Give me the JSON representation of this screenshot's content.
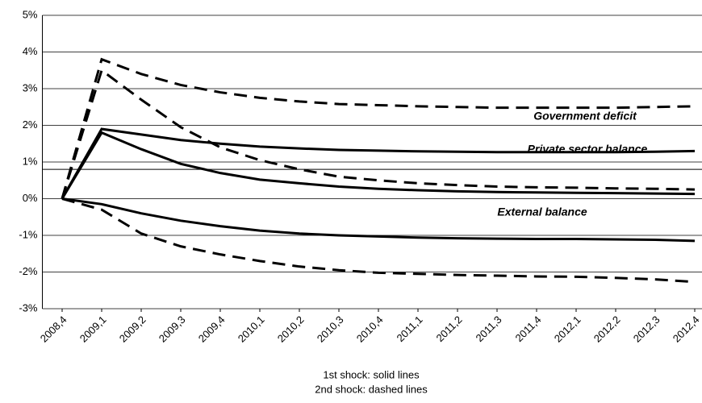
{
  "chart_data": {
    "type": "line",
    "categories": [
      "2008,4",
      "2009,1",
      "2009,2",
      "2009,3",
      "2009,4",
      "2010,1",
      "2010,2",
      "2010,3",
      "2010,4",
      "2011,1",
      "2011,2",
      "2011,3",
      "2011,4",
      "2012,1",
      "2012,2",
      "2012,3",
      "2012,4"
    ],
    "series": [
      {
        "color": "#000000",
        "dash": false,
        "values": [
          0,
          1.9,
          1.75,
          1.6,
          1.5,
          1.42,
          1.37,
          1.33,
          1.31,
          1.29,
          1.28,
          1.27,
          1.27,
          1.27,
          1.27,
          1.28,
          1.3
        ]
      },
      {
        "color": "#000000",
        "dash": false,
        "values": [
          0,
          1.8,
          1.35,
          0.95,
          0.7,
          0.52,
          0.42,
          0.33,
          0.27,
          0.23,
          0.2,
          0.18,
          0.17,
          0.16,
          0.15,
          0.14,
          0.13
        ]
      },
      {
        "color": "#000000",
        "dash": false,
        "values": [
          0,
          -0.15,
          -0.4,
          -0.6,
          -0.75,
          -0.87,
          -0.95,
          -1.0,
          -1.03,
          -1.06,
          -1.08,
          -1.09,
          -1.1,
          -1.1,
          -1.11,
          -1.12,
          -1.15
        ]
      },
      {
        "color": "#000000",
        "dash": true,
        "values": [
          0,
          3.8,
          3.4,
          3.1,
          2.9,
          2.75,
          2.65,
          2.58,
          2.55,
          2.52,
          2.5,
          2.48,
          2.48,
          2.48,
          2.48,
          2.5,
          2.52
        ]
      },
      {
        "color": "#000000",
        "dash": true,
        "values": [
          0,
          3.5,
          2.7,
          1.95,
          1.4,
          1.05,
          0.8,
          0.6,
          0.5,
          0.42,
          0.37,
          0.33,
          0.31,
          0.3,
          0.28,
          0.27,
          0.25
        ]
      },
      {
        "color": "#000000",
        "dash": true,
        "values": [
          0,
          -0.3,
          -0.95,
          -1.3,
          -1.52,
          -1.7,
          -1.85,
          -1.95,
          -2.02,
          -2.05,
          -2.08,
          -2.1,
          -2.12,
          -2.13,
          -2.16,
          -2.2,
          -2.27
        ]
      }
    ],
    "reference_line": 0.8,
    "ylim": [
      -3,
      5
    ],
    "yticks": [
      {
        "value": -3,
        "label": "-3%"
      },
      {
        "value": -2,
        "label": "-2%"
      },
      {
        "value": -1,
        "label": "-1%"
      },
      {
        "value": 0,
        "label": "0%"
      },
      {
        "value": 1,
        "label": "1%"
      },
      {
        "value": 2,
        "label": "2%"
      },
      {
        "value": 3,
        "label": "3%"
      },
      {
        "value": 4,
        "label": "4%"
      },
      {
        "value": 5,
        "label": "5%"
      }
    ],
    "grid": true,
    "annotations": [
      "Government deficit",
      "Private sector balance",
      "External balance"
    ],
    "notes": [
      "1st shock: solid lines",
      "2nd shock: dashed lines"
    ]
  }
}
